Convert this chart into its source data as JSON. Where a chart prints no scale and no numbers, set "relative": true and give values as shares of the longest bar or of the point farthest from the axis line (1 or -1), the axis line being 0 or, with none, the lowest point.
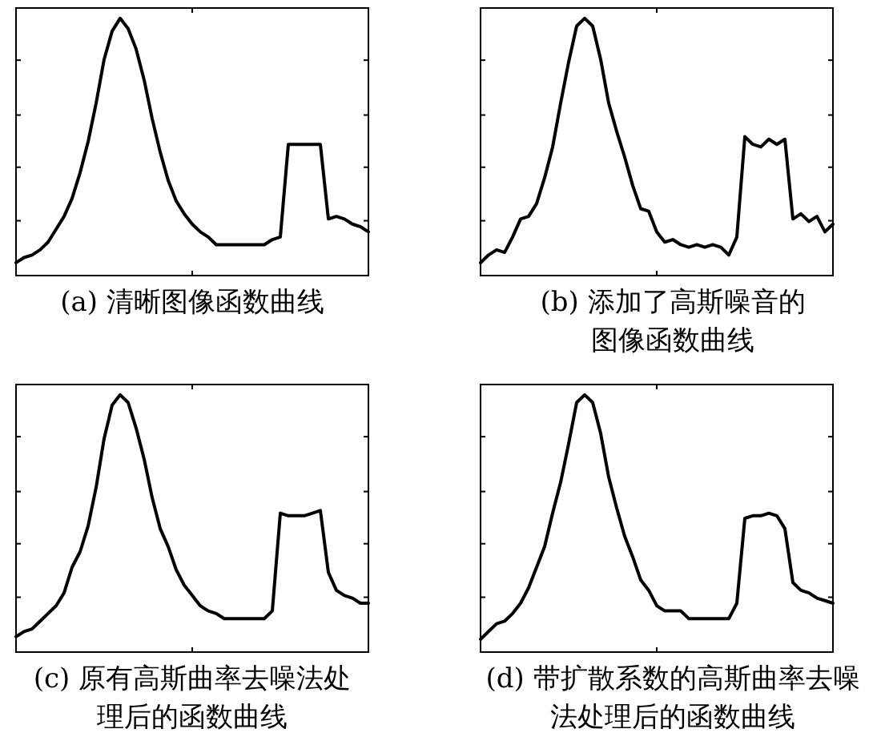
{
  "chart_data": [
    {
      "type": "line",
      "title": "(a) 清晰图像函数曲线",
      "relative": true,
      "categories": [
        null,
        null,
        null,
        null,
        null,
        null,
        null,
        null,
        null,
        null,
        null,
        null,
        null,
        null,
        null,
        null,
        null,
        null,
        null,
        null,
        null,
        null,
        null,
        null,
        null,
        null,
        null,
        null,
        null,
        null,
        null,
        null,
        null,
        null,
        null,
        null,
        null,
        null,
        null,
        null,
        null,
        null,
        null,
        null,
        null
      ],
      "series": [
        {
          "color": "#000000",
          "values": [
            0.05,
            0.07,
            0.08,
            0.1,
            0.13,
            0.18,
            0.23,
            0.3,
            0.4,
            0.52,
            0.67,
            0.84,
            0.95,
            1.0,
            0.96,
            0.88,
            0.76,
            0.61,
            0.48,
            0.37,
            0.29,
            0.24,
            0.2,
            0.17,
            0.15,
            0.12,
            0.12,
            0.12,
            0.12,
            0.12,
            0.12,
            0.12,
            0.14,
            0.15,
            0.51,
            0.51,
            0.51,
            0.51,
            0.51,
            0.22,
            0.23,
            0.22,
            0.2,
            0.19,
            0.17
          ]
        }
      ]
    },
    {
      "type": "line",
      "title": "(b) 添加了高斯噪音的图像函数曲线",
      "relative": true,
      "categories": [
        null,
        null,
        null,
        null,
        null,
        null,
        null,
        null,
        null,
        null,
        null,
        null,
        null,
        null,
        null,
        null,
        null,
        null,
        null,
        null,
        null,
        null,
        null,
        null,
        null,
        null,
        null,
        null,
        null,
        null,
        null,
        null,
        null,
        null,
        null,
        null,
        null,
        null,
        null,
        null,
        null,
        null,
        null,
        null,
        null
      ],
      "series": [
        {
          "color": "#000000",
          "values": [
            0.05,
            0.08,
            0.1,
            0.09,
            0.15,
            0.22,
            0.23,
            0.28,
            0.38,
            0.5,
            0.67,
            0.83,
            0.97,
            1.0,
            0.97,
            0.84,
            0.67,
            0.56,
            0.46,
            0.35,
            0.26,
            0.25,
            0.17,
            0.13,
            0.14,
            0.12,
            0.11,
            0.12,
            0.11,
            0.12,
            0.11,
            0.08,
            0.15,
            0.54,
            0.51,
            0.5,
            0.53,
            0.51,
            0.53,
            0.22,
            0.24,
            0.21,
            0.23,
            0.17,
            0.2
          ]
        }
      ]
    },
    {
      "type": "line",
      "title": "(c) 原有高斯曲率去噪法处理后的函数曲线",
      "relative": true,
      "categories": [
        null,
        null,
        null,
        null,
        null,
        null,
        null,
        null,
        null,
        null,
        null,
        null,
        null,
        null,
        null,
        null,
        null,
        null,
        null,
        null,
        null,
        null,
        null,
        null,
        null,
        null,
        null,
        null,
        null,
        null,
        null,
        null,
        null,
        null,
        null,
        null,
        null,
        null,
        null,
        null,
        null,
        null,
        null,
        null,
        null
      ],
      "series": [
        {
          "color": "#000000",
          "values": [
            0.06,
            0.08,
            0.09,
            0.12,
            0.15,
            0.18,
            0.23,
            0.33,
            0.39,
            0.49,
            0.64,
            0.83,
            0.96,
            1.0,
            0.97,
            0.87,
            0.75,
            0.6,
            0.48,
            0.41,
            0.32,
            0.26,
            0.22,
            0.18,
            0.16,
            0.15,
            0.13,
            0.13,
            0.13,
            0.13,
            0.13,
            0.13,
            0.16,
            0.54,
            0.53,
            0.53,
            0.53,
            0.54,
            0.55,
            0.31,
            0.24,
            0.22,
            0.21,
            0.19,
            0.19
          ]
        }
      ]
    },
    {
      "type": "line",
      "title": "(d) 带扩散系数的高斯曲率去噪法处理后的函数曲线",
      "relative": true,
      "categories": [
        null,
        null,
        null,
        null,
        null,
        null,
        null,
        null,
        null,
        null,
        null,
        null,
        null,
        null,
        null,
        null,
        null,
        null,
        null,
        null,
        null,
        null,
        null,
        null,
        null,
        null,
        null,
        null,
        null,
        null,
        null,
        null,
        null,
        null,
        null,
        null,
        null,
        null,
        null,
        null,
        null,
        null,
        null,
        null,
        null
      ],
      "series": [
        {
          "color": "#000000",
          "values": [
            0.05,
            0.08,
            0.11,
            0.12,
            0.15,
            0.19,
            0.25,
            0.33,
            0.41,
            0.54,
            0.66,
            0.81,
            0.97,
            1.0,
            0.97,
            0.85,
            0.68,
            0.56,
            0.45,
            0.37,
            0.28,
            0.24,
            0.18,
            0.16,
            0.16,
            0.16,
            0.13,
            0.13,
            0.13,
            0.13,
            0.13,
            0.13,
            0.19,
            0.52,
            0.53,
            0.53,
            0.54,
            0.53,
            0.48,
            0.27,
            0.24,
            0.23,
            0.21,
            0.2,
            0.19
          ]
        }
      ]
    }
  ]
}
